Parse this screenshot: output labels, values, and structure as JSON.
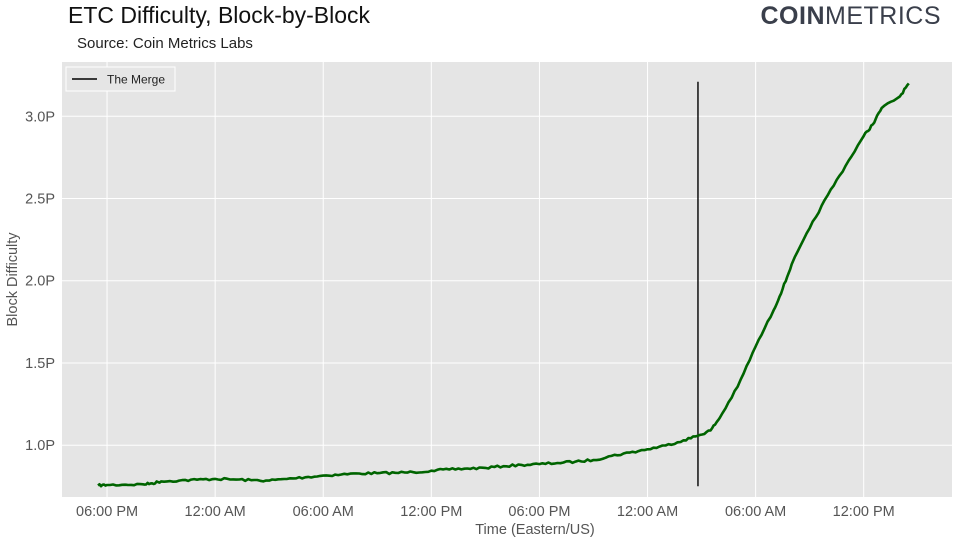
{
  "header": {
    "title": "ETC Difficulty, Block-by-Block",
    "subtitle": "Source: Coin Metrics Labs",
    "logo_bold": "COIN",
    "logo_light": "METRICS"
  },
  "colors": {
    "plot_background": "#e5e5e5",
    "series_line": "#006400",
    "merge_line": "#000000"
  },
  "chart_data": {
    "type": "line",
    "title": "ETC Difficulty, Block-by-Block",
    "xlabel": "Time (Eastern/US)",
    "ylabel": "Block Difficulty",
    "grid": true,
    "legend_position": "top-left",
    "x_unit": "hours",
    "x_tick_labels": [
      "06:00 PM",
      "12:00 AM",
      "06:00 AM",
      "12:00 PM",
      "06:00 PM",
      "12:00 AM",
      "06:00 AM",
      "12:00 PM"
    ],
    "x_ticks": [
      0,
      6,
      12,
      18,
      24,
      30,
      36,
      42
    ],
    "xlim": [
      -2.5,
      46.9
    ],
    "y_tick_labels": [
      "1.0P",
      "1.5P",
      "2.0P",
      "2.5P",
      "3.0P"
    ],
    "y_ticks": [
      1.0,
      1.5,
      2.0,
      2.5,
      3.0
    ],
    "ylim": [
      0.685,
      3.33
    ],
    "y_unit": "P (10^15)",
    "vertical_line": {
      "label": "The Merge",
      "x": 32.8,
      "y_range": [
        0.75,
        3.21
      ]
    },
    "series": [
      {
        "x": [
          -0.5,
          0,
          1,
          2,
          2.5,
          3,
          4,
          5,
          6,
          7,
          8,
          9,
          10,
          11,
          12,
          13,
          14,
          15,
          16,
          17,
          18,
          19,
          20,
          21,
          22,
          23,
          24,
          25,
          26,
          27,
          28,
          29,
          30,
          31,
          32,
          32.8,
          33.5,
          34,
          35,
          36,
          37,
          37.5,
          38,
          39,
          40,
          41,
          42,
          42.5,
          43,
          44,
          44.5
        ],
        "y": [
          0.755,
          0.758,
          0.76,
          0.762,
          0.768,
          0.78,
          0.785,
          0.79,
          0.795,
          0.792,
          0.787,
          0.785,
          0.795,
          0.805,
          0.815,
          0.822,
          0.828,
          0.83,
          0.832,
          0.836,
          0.845,
          0.852,
          0.858,
          0.862,
          0.872,
          0.88,
          0.885,
          0.892,
          0.9,
          0.91,
          0.935,
          0.955,
          0.975,
          0.998,
          1.03,
          1.058,
          1.09,
          1.165,
          1.355,
          1.6,
          1.82,
          1.95,
          2.1,
          2.32,
          2.52,
          2.7,
          2.88,
          2.95,
          3.05,
          3.12,
          3.2
        ]
      }
    ]
  },
  "legend": {
    "label": "The Merge"
  }
}
